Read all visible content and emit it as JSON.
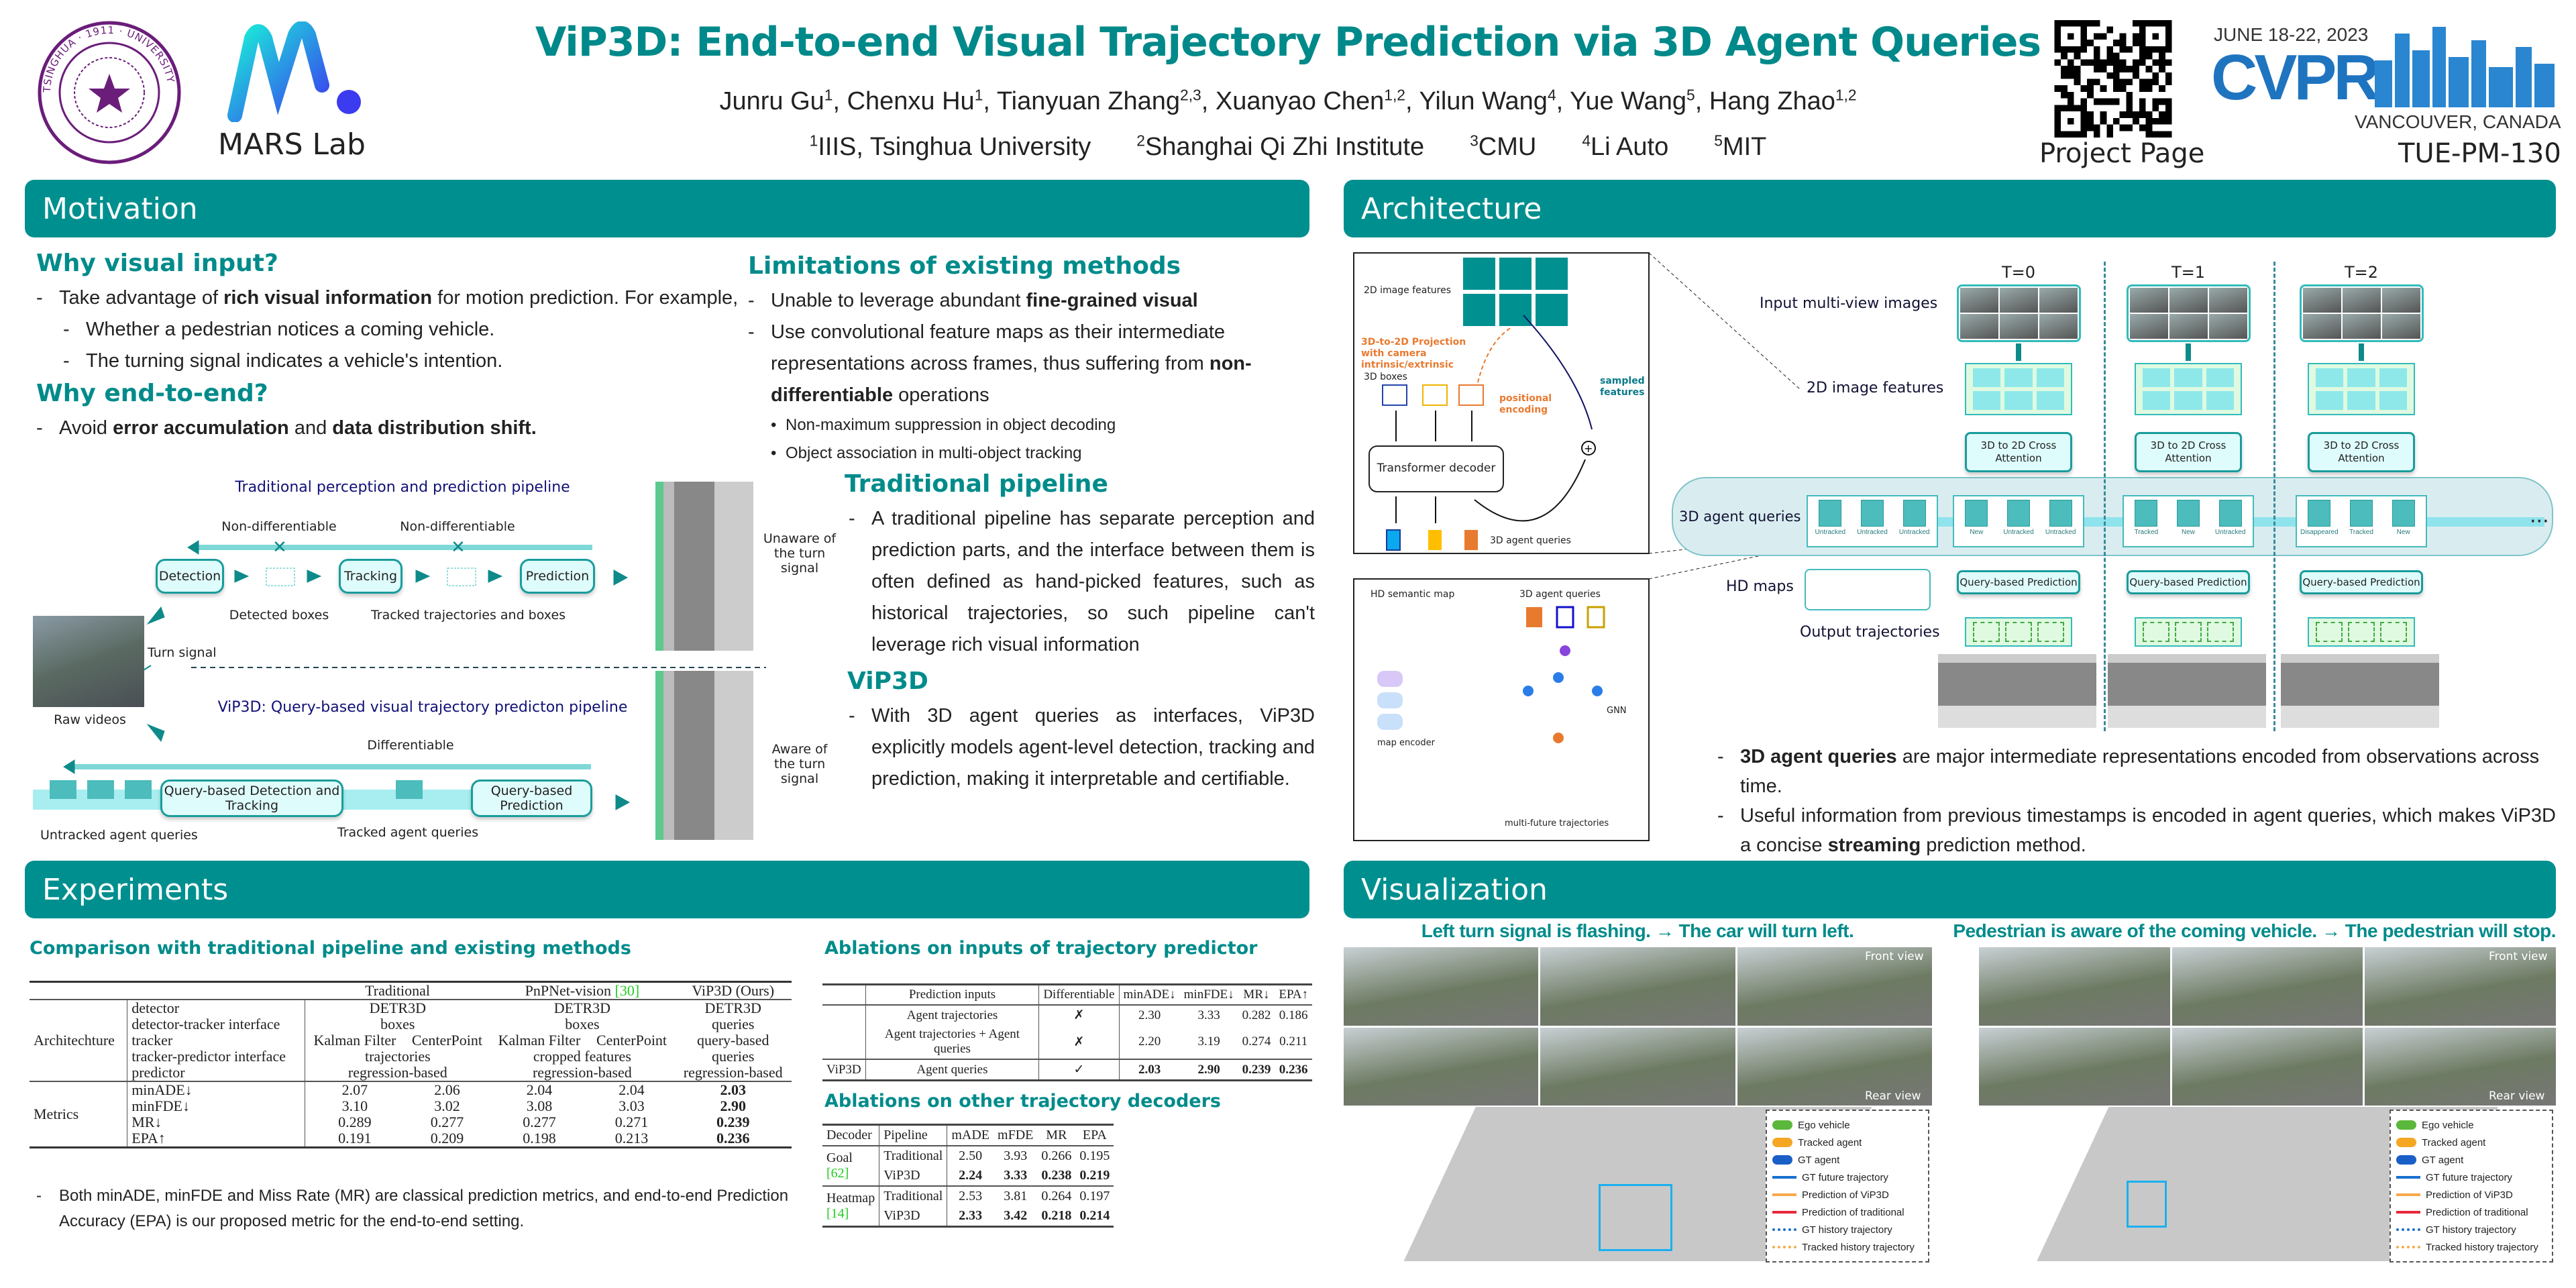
{
  "header": {
    "title": "ViP3D: End-to-end Visual Trajectory Prediction via 3D Agent Queries",
    "authors": [
      {
        "name": "Junru Gu",
        "sup": "1"
      },
      {
        "name": "Chenxu Hu",
        "sup": "1"
      },
      {
        "name": "Tianyuan Zhang",
        "sup": "2,3"
      },
      {
        "name": "Xuanyao Chen",
        "sup": "1,2"
      },
      {
        "name": "Yilun Wang",
        "sup": "4"
      },
      {
        "name": "Yue Wang",
        "sup": "5"
      },
      {
        "name": "Hang Zhao",
        "sup": "1,2"
      }
    ],
    "affiliations": [
      {
        "sup": "1",
        "name": "IIIS, Tsinghua University"
      },
      {
        "sup": "2",
        "name": "Shanghai Qi Zhi Institute"
      },
      {
        "sup": "3",
        "name": "CMU"
      },
      {
        "sup": "4",
        "name": "Li Auto"
      },
      {
        "sup": "5",
        "name": "MIT"
      }
    ],
    "tsinghua_seal_text": "TSINGHUA · 1911 · UNIVERSITY",
    "lab_name": "MARS Lab",
    "project_page_label": "Project Page",
    "cvpr": {
      "dates": "JUNE 18-22, 2023",
      "name": "CVPR",
      "location": "VANCOUVER, CANADA"
    },
    "session_id": "TUE-PM-130",
    "colors": {
      "accent": "#008b8b",
      "cvpr_blue": "#1f74c0",
      "lab_gradient": [
        "#19f0d8",
        "#3b3bf0"
      ]
    }
  },
  "motivation": {
    "section_title": "Motivation",
    "why_visual": {
      "heading": "Why visual input?",
      "bullets": [
        [
          {
            "t": "Take advantage of "
          },
          {
            "t": "rich visual information",
            "b": true
          },
          {
            "t": " for motion prediction. For example,"
          }
        ]
      ],
      "sub_bullets": [
        "Whether a pedestrian notices a coming vehicle.",
        "The turning signal indicates a vehicle's intention."
      ]
    },
    "why_e2e": {
      "heading": "Why end-to-end?",
      "bullets": [
        [
          {
            "t": "Avoid "
          },
          {
            "t": "error accumulation",
            "b": true
          },
          {
            "t": " and "
          },
          {
            "t": "data distribution shift.",
            "b": true
          }
        ]
      ]
    },
    "limitations": {
      "heading": "Limitations of existing methods",
      "bullets": [
        [
          {
            "t": "Unable to leverage abundant "
          },
          {
            "t": "fine-grained visual",
            "b": true
          }
        ],
        [
          {
            "t": "Use convolutional feature maps as their intermediate representations across frames, thus suffering from "
          },
          {
            "t": "non-differentiable",
            "b": true
          },
          {
            "t": " operations"
          }
        ]
      ],
      "sub_bullets": [
        "Non-maximum suppression in object decoding",
        "Object association in multi-object tracking"
      ]
    },
    "traditional_pipeline": {
      "heading": "Traditional pipeline",
      "text": "A traditional pipeline has separate perception and prediction parts, and the interface between them is often defined as hand-picked features, such as historical trajectories, so such pipeline can't leverage rich visual information"
    },
    "vip3d": {
      "heading": "ViP3D",
      "text": "With 3D agent queries as interfaces, ViP3D explicitly models agent-level detection, tracking and prediction, making it interpretable and certifiable."
    },
    "figure": {
      "traditional_title": "Traditional perception and prediction pipeline",
      "non_diff_1": "Non-differentiable",
      "non_diff_2": "Non-differentiable",
      "detection": "Detection",
      "tracking": "Tracking",
      "prediction": "Prediction",
      "detected_boxes": "Detected boxes",
      "tracked_traj": "Tracked trajectories and boxes",
      "turn_signal": "Turn signal",
      "raw_videos": "Raw videos",
      "vip3d_title": "ViP3D: Query-based visual trajectory predicton pipeline",
      "differentiable": "Differentiable",
      "qdt": "Query-based Detection and Tracking",
      "qbp": "Query-based Prediction",
      "untracked": "Untracked agent queries",
      "tracked": "Tracked agent queries",
      "unaware": "Unaware of the turn signal",
      "aware": "Aware of the turn signal"
    }
  },
  "architecture": {
    "section_title": "Architecture",
    "inset1": {
      "image_features": "2D image features",
      "projection": "3D-to-2D Projection with camera intrinsic/extrinsic",
      "boxes": "3D boxes",
      "positional": "positional encoding",
      "sampled": "sampled features",
      "decoder": "Transformer decoder",
      "queries": "3D agent queries"
    },
    "inset2": {
      "hd_map": "HD semantic map",
      "queries": "3D agent queries",
      "map_encoder": "map encoder",
      "gnn": "GNN",
      "multi_future": "multi-future trajectories"
    },
    "timesteps": [
      "T=0",
      "T=1",
      "T=2"
    ],
    "row_labels": {
      "input": "Input multi-view images",
      "features": "2D image features",
      "agent_queries": "3D agent queries",
      "hd_maps": "HD maps",
      "output": "Output trajectories"
    },
    "cross_attention": "3D to 2D Cross Attention",
    "query_prediction": "Query-based Prediction",
    "query_states": [
      [
        "Untracked",
        "Untracked",
        "Untracked"
      ],
      [
        "New",
        "Untracked",
        "Untracked"
      ],
      [
        "Tracked",
        "New",
        "Untracked"
      ],
      [
        "Disappeared",
        "Tracked",
        "New"
      ]
    ],
    "ellipsis": "···",
    "bullets": [
      [
        {
          "t": "3D agent queries",
          "b": true
        },
        {
          "t": " are major intermediate representations encoded from observations across time."
        }
      ],
      [
        {
          "t": "Useful information from previous timestamps is encoded in agent queries, which makes ViP3D a concise "
        },
        {
          "t": "streaming",
          "b": true
        },
        {
          "t": " prediction method."
        }
      ]
    ]
  },
  "experiments": {
    "section_title": "Experiments",
    "comparison": {
      "heading": "Comparison with traditional pipeline and existing methods",
      "col_headers": [
        "Traditional",
        "PnPNet-vision",
        "ViP3D (Ours)"
      ],
      "pnpnet_cite": "[30]",
      "arch_label": "Architechture",
      "metrics_label": "Metrics",
      "arch_rows": [
        {
          "name": "detector",
          "trad": "DETR3D",
          "pnp": "DETR3D",
          "ours": "DETR3D"
        },
        {
          "name": "detector-tracker interface",
          "trad": "boxes",
          "pnp": "boxes",
          "ours": "queries"
        },
        {
          "name": "tracker",
          "trad": [
            "Kalman Filter",
            "CenterPoint"
          ],
          "pnp": [
            "Kalman Filter",
            "CenterPoint"
          ],
          "ours": "query-based"
        },
        {
          "name": "tracker-predictor interface",
          "trad": "trajectories",
          "pnp": "cropped features",
          "ours": "queries"
        },
        {
          "name": "predictor",
          "trad": "regression-based",
          "pnp": "regression-based",
          "ours": "regression-based"
        }
      ],
      "metric_rows": [
        {
          "name": "minADE↓",
          "values": [
            "2.07",
            "2.06",
            "2.04",
            "2.04",
            "2.03"
          ]
        },
        {
          "name": "minFDE↓",
          "values": [
            "3.10",
            "3.02",
            "3.08",
            "3.03",
            "2.90"
          ]
        },
        {
          "name": "MR↓",
          "values": [
            "0.289",
            "0.277",
            "0.277",
            "0.271",
            "0.239"
          ]
        },
        {
          "name": "EPA↑",
          "values": [
            "0.191",
            "0.209",
            "0.198",
            "0.213",
            "0.236"
          ]
        }
      ],
      "note": "Both minADE, minFDE and Miss Rate (MR) are classical prediction metrics, and end-to-end Prediction Accuracy (EPA) is our proposed metric for the end-to-end setting."
    },
    "ablation_inputs": {
      "heading": "Ablations on inputs of trajectory predictor",
      "headers": [
        "",
        "Prediction inputs",
        "Differentiable",
        "minADE↓",
        "minFDE↓",
        "MR↓",
        "EPA↑"
      ],
      "rows": [
        [
          "",
          "Agent trajectories",
          "✗",
          "2.30",
          "3.33",
          "0.282",
          "0.186"
        ],
        [
          "",
          "Agent trajectories + Agent queries",
          "✗",
          "2.20",
          "3.19",
          "0.274",
          "0.211"
        ],
        [
          "ViP3D",
          "Agent queries",
          "✓",
          "2.03",
          "2.90",
          "0.239",
          "0.236"
        ]
      ]
    },
    "ablation_decoders": {
      "heading": "Ablations on other trajectory decoders",
      "headers": [
        "Decoder",
        "Pipeline",
        "mADE",
        "mFDE",
        "MR",
        "EPA"
      ],
      "groups": [
        {
          "decoder": "Goal",
          "cite": "[62]",
          "rows": [
            [
              "Traditional",
              "2.50",
              "3.93",
              "0.266",
              "0.195"
            ],
            [
              "ViP3D",
              "2.24",
              "3.33",
              "0.238",
              "0.219"
            ]
          ]
        },
        {
          "decoder": "Heatmap",
          "cite": "[14]",
          "rows": [
            [
              "Traditional",
              "2.53",
              "3.81",
              "0.264",
              "0.197"
            ],
            [
              "ViP3D",
              "2.33",
              "3.42",
              "0.218",
              "0.214"
            ]
          ]
        }
      ]
    }
  },
  "visualization": {
    "section_title": "Visualization",
    "left_caption": "Left turn signal is flashing. → The car will turn left.",
    "right_caption": "Pedestrian is aware of the coming vehicle. → The pedestrian will stop.",
    "front_view": "Front view",
    "rear_view": "Rear view",
    "legend": [
      {
        "label": "Ego vehicle",
        "color": "#5cb83a",
        "kind": "car"
      },
      {
        "label": "Tracked agent",
        "color": "#f5a623",
        "kind": "car"
      },
      {
        "label": "GT agent",
        "color": "#1a5fc8",
        "kind": "car"
      },
      {
        "label": "GT future trajectory",
        "color": "#1a6fd0",
        "kind": "solid"
      },
      {
        "label": "Prediction of ViP3D",
        "color": "#f7a94a",
        "kind": "solid"
      },
      {
        "label": "Prediction of traditional",
        "color": "#e8283c",
        "kind": "solid"
      },
      {
        "label": "GT history trajectory",
        "color": "#1a6fd0",
        "kind": "dotted"
      },
      {
        "label": "Tracked history trajectory",
        "color": "#f7a94a",
        "kind": "dotted"
      }
    ]
  }
}
